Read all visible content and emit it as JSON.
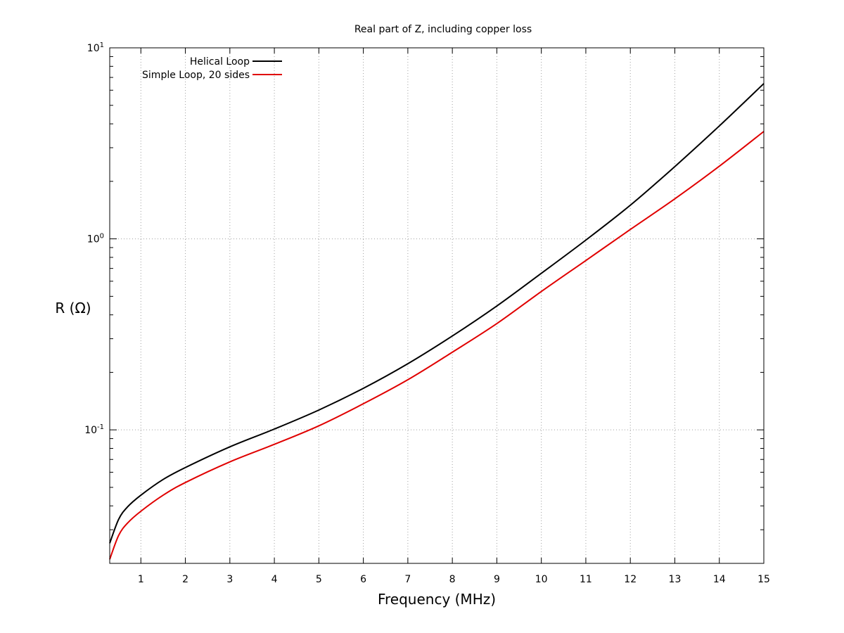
{
  "chart_data": {
    "type": "line",
    "title": "Real part of Z, including copper loss",
    "xlabel": "Frequency (MHz)",
    "ylabel": "R (Ω)",
    "xlim": [
      0.3,
      15
    ],
    "ylim": [
      0.02,
      10
    ],
    "yscale": "log",
    "grid": true,
    "legend_position": "top-left",
    "x_ticks": [
      1,
      2,
      3,
      4,
      5,
      6,
      7,
      8,
      9,
      10,
      11,
      12,
      13,
      14,
      15
    ],
    "y_ticks": [
      {
        "value": 0.1,
        "base": "10",
        "exp": "-1"
      },
      {
        "value": 1,
        "base": "10",
        "exp": "0"
      },
      {
        "value": 10,
        "base": "10",
        "exp": "1"
      }
    ],
    "x": [
      0.3,
      0.5,
      0.7,
      1,
      1.5,
      2,
      3,
      4,
      5,
      6,
      7,
      8,
      9,
      10,
      11,
      12,
      13,
      14,
      15
    ],
    "series": [
      {
        "name": "Helical Loop",
        "color": "#000000",
        "values": [
          0.0255,
          0.034,
          0.0395,
          0.0455,
          0.055,
          0.0635,
          0.0815,
          0.101,
          0.127,
          0.165,
          0.222,
          0.31,
          0.445,
          0.66,
          0.985,
          1.5,
          2.39,
          3.9,
          6.5
        ]
      },
      {
        "name": "Simple Loop, 20 sides",
        "color": "#e00000",
        "values": [
          0.021,
          0.028,
          0.0325,
          0.0375,
          0.0455,
          0.053,
          0.068,
          0.084,
          0.105,
          0.137,
          0.183,
          0.255,
          0.36,
          0.53,
          0.77,
          1.12,
          1.62,
          2.4,
          3.65
        ]
      }
    ]
  }
}
